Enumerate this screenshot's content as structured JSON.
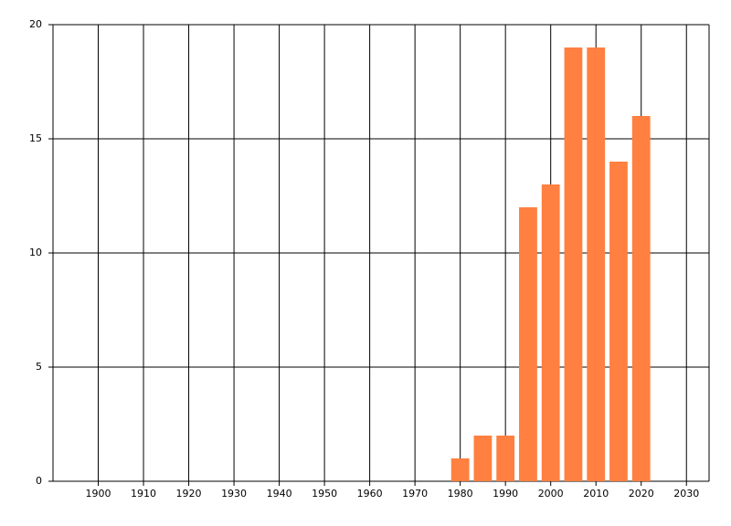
{
  "chart_data": {
    "type": "bar",
    "x": [
      1980,
      1985,
      1990,
      1995,
      2000,
      2005,
      2010,
      2015,
      2020
    ],
    "values": [
      1,
      2,
      2,
      12,
      13,
      19,
      19,
      14,
      16
    ],
    "bar_width": 4,
    "color": "#ff8040",
    "xlim": [
      1890,
      2035
    ],
    "xticks": [
      1900,
      1910,
      1920,
      1930,
      1940,
      1950,
      1960,
      1970,
      1980,
      1990,
      2000,
      2010,
      2020,
      2030
    ],
    "ylim": [
      0,
      20
    ],
    "yticks": [
      0,
      5,
      10,
      15,
      20
    ],
    "grid": true
  }
}
